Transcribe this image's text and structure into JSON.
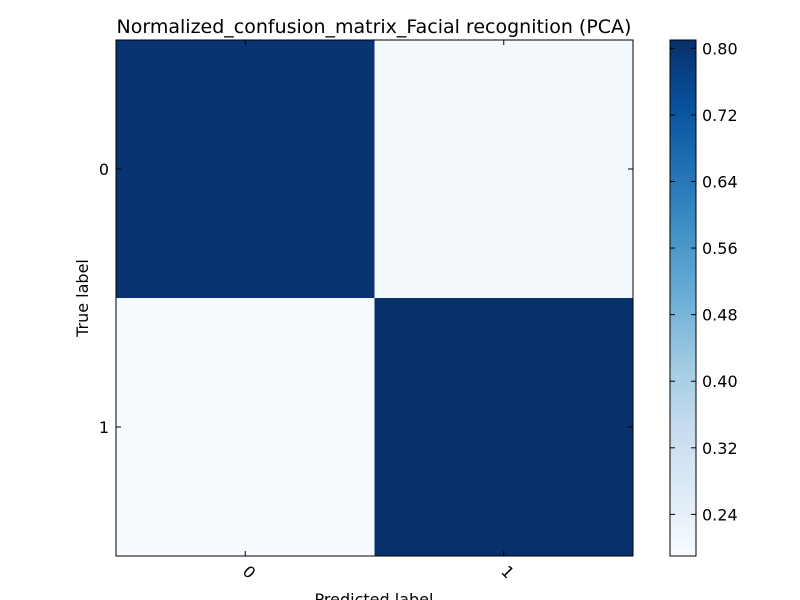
{
  "chart_data": {
    "type": "heatmap",
    "title": "Normalized_confusion_matrix_Facial recognition (PCA)",
    "xlabel": "Predicted label",
    "ylabel": "True label",
    "x_categories": [
      "0",
      "1"
    ],
    "y_categories": [
      "0",
      "1"
    ],
    "matrix": [
      [
        0.8,
        0.2
      ],
      [
        0.19,
        0.81
      ]
    ],
    "colormap": "Blues",
    "color_low": "#f7fbff",
    "color_high": "#08306b",
    "vmin": 0.19,
    "vmax": 0.81,
    "colorbar": {
      "ticks": [
        "0.24",
        "0.32",
        "0.40",
        "0.48",
        "0.56",
        "0.64",
        "0.72",
        "0.80"
      ]
    },
    "grid": false,
    "x_tick_rotation": 45
  }
}
